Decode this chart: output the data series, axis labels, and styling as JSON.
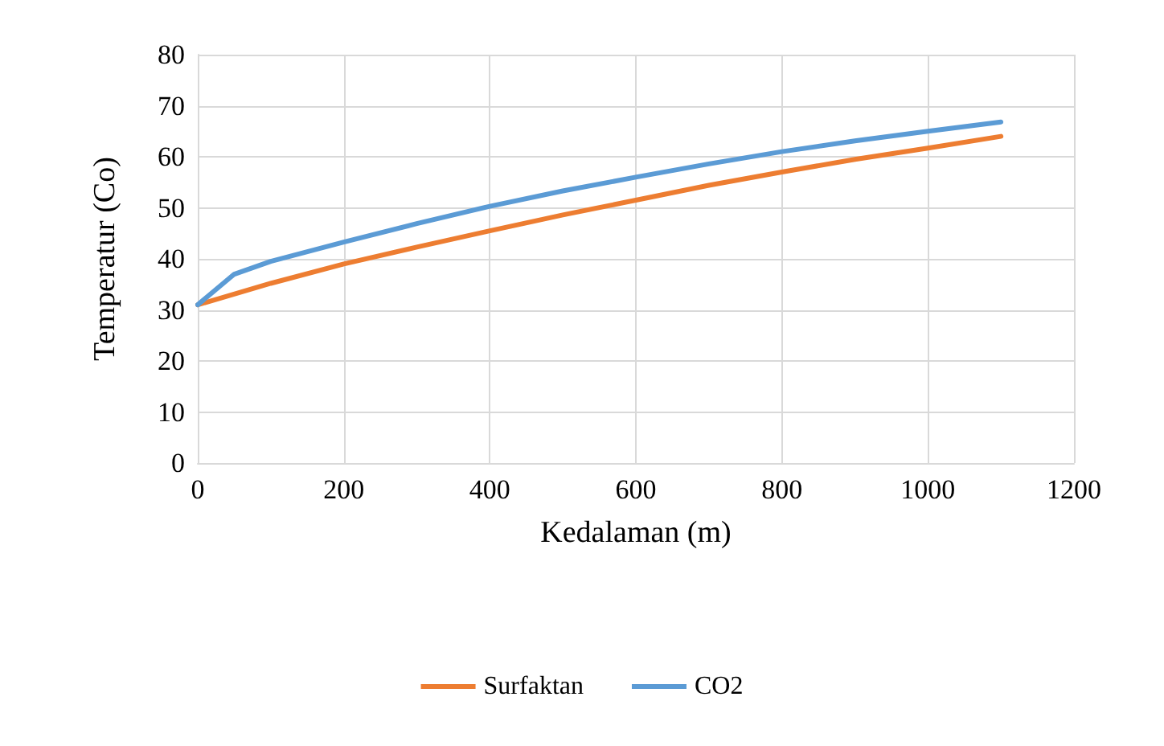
{
  "chart_data": {
    "type": "line",
    "xlabel": "Kedalaman (m)",
    "ylabel": "Temperatur (Co)",
    "x": [
      0,
      100,
      200,
      300,
      400,
      500,
      600,
      700,
      800,
      900,
      1000,
      1100
    ],
    "series": [
      {
        "name": "Surfaktan",
        "color": "#ed7d31",
        "values": [
          31,
          35.2,
          39,
          42.3,
          45.5,
          48.6,
          51.5,
          54.4,
          57,
          59.5,
          61.7,
          64
        ]
      },
      {
        "name": "CO2",
        "color": "#5b9bd5",
        "x": [
          0,
          50,
          100,
          200,
          300,
          400,
          500,
          600,
          700,
          800,
          900,
          1000,
          1100
        ],
        "values": [
          31,
          37,
          39.5,
          43.3,
          46.9,
          50.3,
          53.3,
          56,
          58.6,
          61,
          63.1,
          65,
          66.8
        ]
      }
    ],
    "xlim": [
      0,
      1200
    ],
    "xticks": [
      0,
      200,
      400,
      600,
      800,
      1000,
      1200
    ],
    "ylim": [
      0,
      80
    ],
    "yticks": [
      0,
      10,
      20,
      30,
      40,
      50,
      60,
      70,
      80
    ],
    "grid": true,
    "legend": "bottom",
    "marker": "none",
    "line_style": "solid"
  }
}
